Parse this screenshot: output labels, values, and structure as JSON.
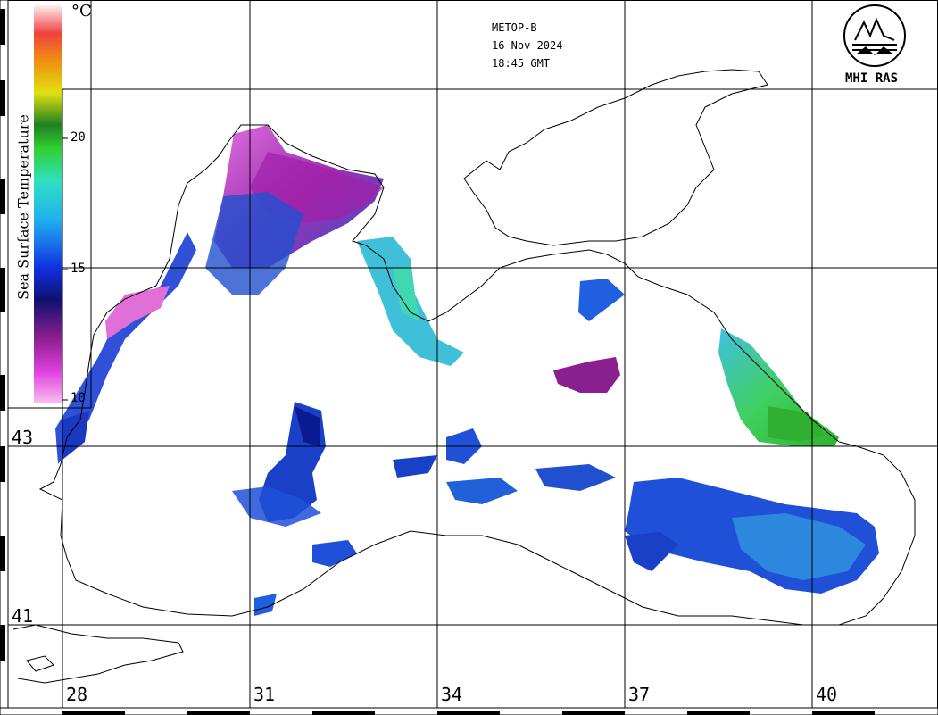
{
  "satellite": "METOP-B",
  "date": "16 Nov 2024",
  "time": "18:45 GMT",
  "logo_text": "MHI RAS",
  "colorbar": {
    "title": "Sea Surface Temperature",
    "unit": "°C",
    "ticks": [
      "20",
      "15",
      "10"
    ],
    "min": 10,
    "max": 25
  },
  "axes": {
    "longitudes": [
      "28",
      "31",
      "34",
      "37",
      "40"
    ],
    "latitudes": [
      "43",
      "41"
    ]
  },
  "colors": {
    "land": "#ffffff",
    "cold_magenta": "#c030c0",
    "blue": "#2040d0",
    "cyan": "#30c0e0",
    "green": "#40d040"
  }
}
